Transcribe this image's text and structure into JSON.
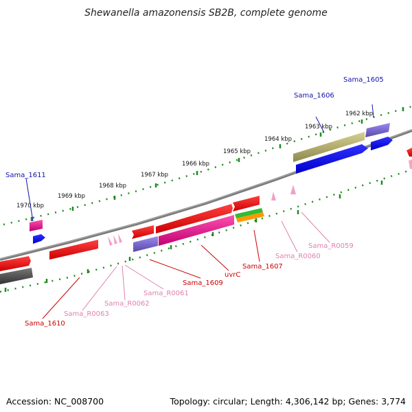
{
  "title": "Shewanella amazonensis SB2B, complete genome",
  "footer": {
    "accession": "Accession: NC_008700",
    "topology": "Topology: circular; Length: 4,306,142 bp; Genes: 3,774"
  },
  "ticks": [
    "1962 kbp",
    "1963 kbp",
    "1964 kbp",
    "1965 kbp",
    "1966 kbp",
    "1967 kbp",
    "1968 kbp",
    "1969 kbp",
    "1970 kbp"
  ],
  "gene_labels": [
    {
      "text": "Sama_1605",
      "color": "#1010b0"
    },
    {
      "text": "Sama_1606",
      "color": "#1010b0"
    },
    {
      "text": "Sama_1611",
      "color": "#1010b0"
    },
    {
      "text": "Sama_R0059",
      "color": "#e080b0"
    },
    {
      "text": "Sama_R0060",
      "color": "#e080b0"
    },
    {
      "text": "Sama_1607",
      "color": "#cc0000"
    },
    {
      "text": "uvrC",
      "color": "#cc0000"
    },
    {
      "text": "Sama_1609",
      "color": "#cc0000"
    },
    {
      "text": "Sama_R0061",
      "color": "#e080b0"
    },
    {
      "text": "Sama_R0062",
      "color": "#e080b0"
    },
    {
      "text": "Sama_R0063",
      "color": "#e080b0"
    },
    {
      "text": "Sama_1610",
      "color": "#cc0000"
    }
  ],
  "colors": {
    "backbone": "#808080",
    "tick_dots": "#1f8a1f",
    "cds_red": "#ee0000",
    "cds_blue": "#0000ee",
    "cds_purple": "#7b68cc",
    "cds_magenta": "#e0208f",
    "cds_olive": "#b8b070",
    "cds_gray": "#555555",
    "trna_pink": "#f0a0c8",
    "green": "#33bb33",
    "orange": "#ff9900"
  }
}
